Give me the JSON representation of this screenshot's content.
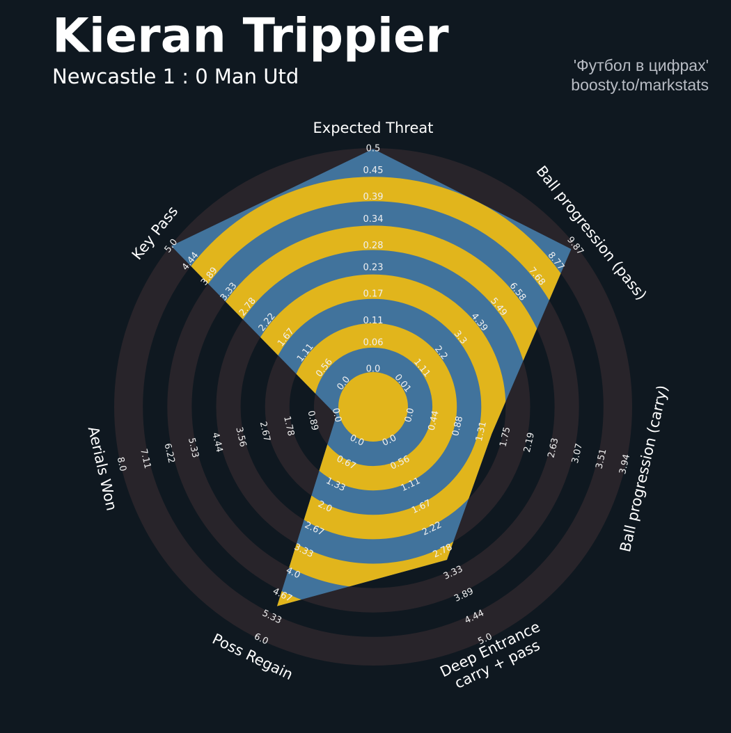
{
  "chart_data": {
    "type": "radar",
    "title": "Kieran Trippier",
    "subtitle": "Newcastle 1 : 0 Man Utd",
    "credits": [
      "'Футбол в цифрах'",
      "boosty.to/markstats"
    ],
    "axes": [
      {
        "label": [
          "Expected Threat"
        ],
        "lim": [
          0,
          0.5
        ],
        "ticks": [
          {
            "value": 0,
            "label": "0.0"
          },
          0.06,
          0.11,
          0.17,
          0.23,
          0.28,
          0.34,
          0.39,
          0.45,
          0.5
        ]
      },
      {
        "label": [
          "Ball progression (pass)"
        ],
        "lim": [
          0.01,
          9.87
        ],
        "ticks": [
          0.01,
          1.11,
          2.2,
          3.3,
          4.39,
          5.49,
          6.58,
          7.68,
          8.77,
          9.87
        ]
      },
      {
        "label": [
          "Ball progression (carry)"
        ],
        "lim": [
          0,
          3.94
        ],
        "ticks": [
          {
            "value": 0,
            "label": "0.0"
          },
          0.44,
          0.88,
          1.31,
          1.75,
          2.19,
          2.63,
          3.07,
          3.51,
          3.94
        ]
      },
      {
        "label": [
          "Deep Entrance",
          "carry + pass"
        ],
        "lim": [
          0,
          5
        ],
        "ticks": [
          {
            "value": 0,
            "label": "0.0"
          },
          0.56,
          1.11,
          1.67,
          2.22,
          2.78,
          3.33,
          3.89,
          4.44,
          {
            "value": 5,
            "label": "5.0"
          }
        ]
      },
      {
        "label": [
          "Poss Regain"
        ],
        "lim": [
          0,
          6
        ],
        "ticks": [
          {
            "value": 0,
            "label": "0.0"
          },
          0.67,
          1.33,
          {
            "value": 2,
            "label": "2.0"
          },
          2.67,
          3.33,
          {
            "value": 4,
            "label": "4.0"
          },
          4.67,
          5.33,
          {
            "value": 6,
            "label": "6.0"
          }
        ]
      },
      {
        "label": [
          "Aerials Won"
        ],
        "lim": [
          0,
          8
        ],
        "ticks": [
          {
            "value": 0,
            "label": "0.0"
          },
          0.89,
          1.78,
          2.67,
          3.56,
          4.44,
          5.33,
          6.22,
          7.11,
          {
            "value": 8,
            "label": "8.0"
          }
        ]
      },
      {
        "label": [
          "Key Pass"
        ],
        "lim": [
          0,
          5
        ],
        "ticks": [
          {
            "value": 0,
            "label": "0.0"
          },
          0.56,
          1.11,
          1.67,
          2.22,
          2.78,
          3.33,
          3.89,
          4.44,
          {
            "value": 5,
            "label": "5.0"
          }
        ]
      }
    ],
    "values": [
      0.5,
      9.65,
      1.5,
      3.0,
      5.0,
      0.0,
      5.0
    ],
    "color": "#41739c",
    "ring_color": "#e1b51c",
    "background_ring_color": "#28242a"
  }
}
